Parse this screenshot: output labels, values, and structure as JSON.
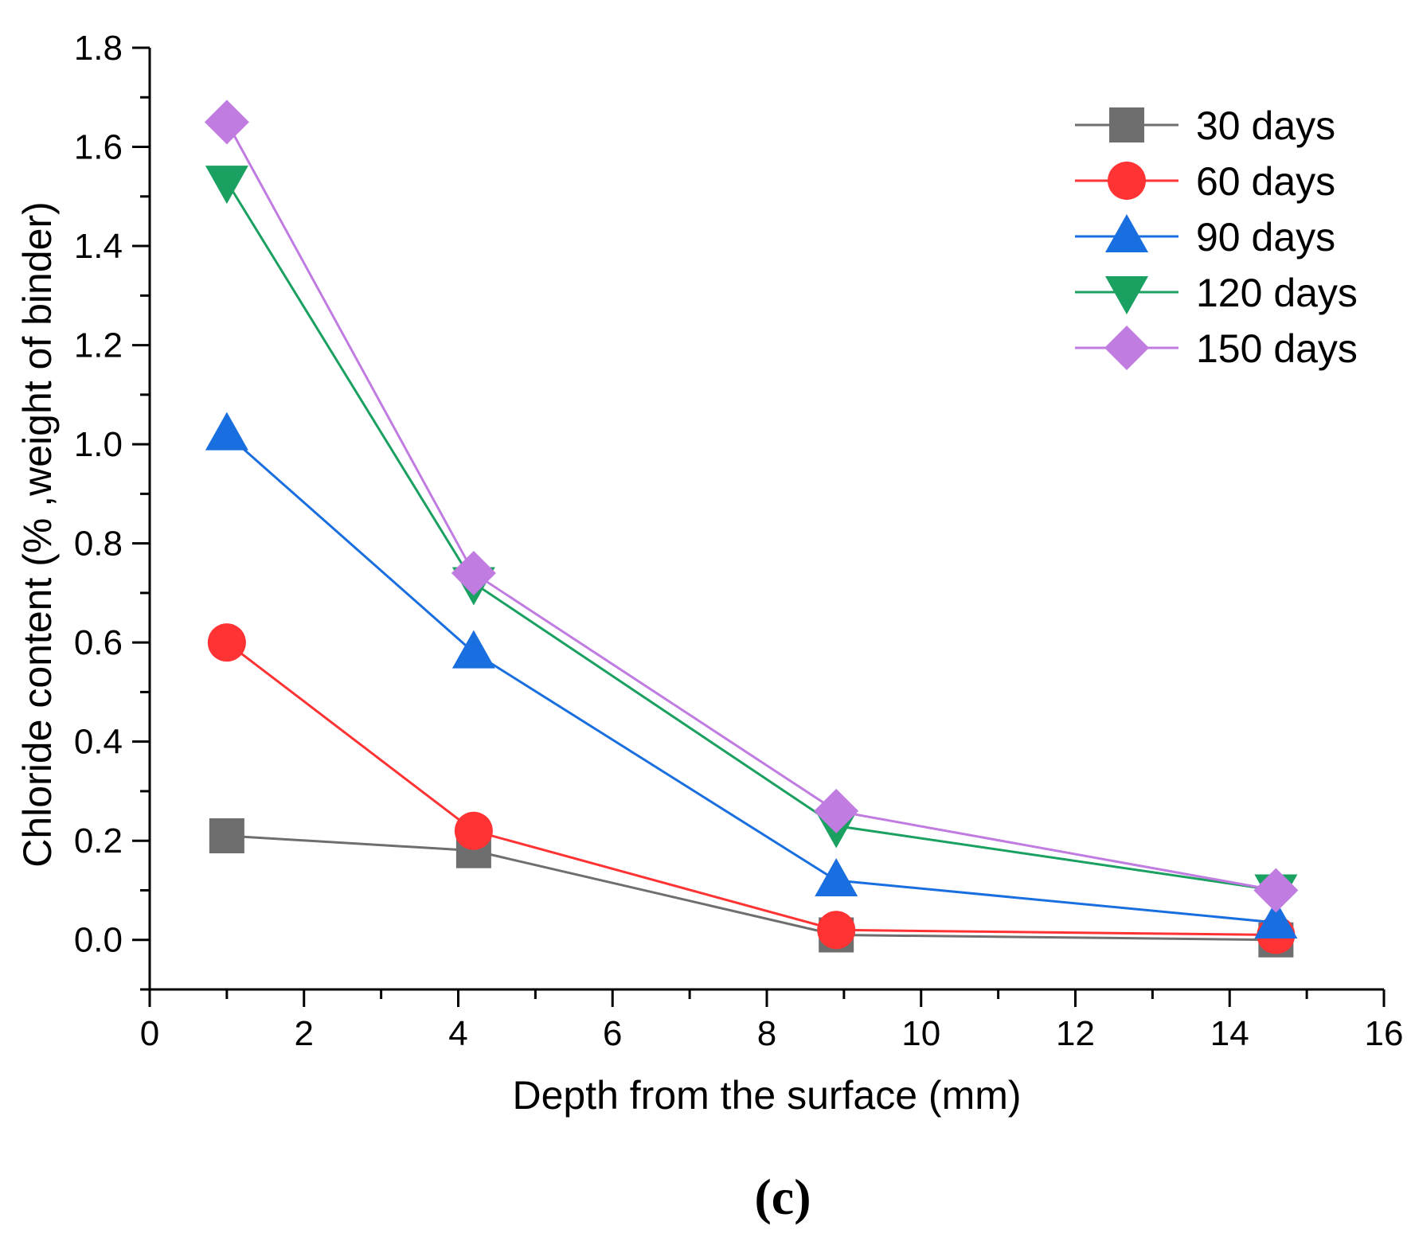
{
  "chart_data": {
    "type": "line",
    "title": "",
    "xlabel": "Depth from the surface (mm)",
    "ylabel": "Chloride content (% ,weight of binder)",
    "xlim": [
      0,
      16
    ],
    "ylim": [
      -0.1,
      1.8
    ],
    "xticks": [
      "0",
      "2",
      "4",
      "6",
      "8",
      "10",
      "12",
      "14",
      "16"
    ],
    "yticks": [
      "0.0",
      "0.2",
      "0.4",
      "0.6",
      "0.8",
      "1.0",
      "1.2",
      "1.4",
      "1.6",
      "1.8"
    ],
    "grid": false,
    "legend_position": "top-right",
    "panel_label": "(c)",
    "x": [
      1.0,
      4.2,
      8.9,
      14.6
    ],
    "series": [
      {
        "name": "30 days",
        "color": "#6e6e6e",
        "marker": "square",
        "values": [
          0.21,
          0.18,
          0.01,
          0.0
        ]
      },
      {
        "name": "60 days",
        "color": "#ff3333",
        "marker": "circle",
        "values": [
          0.6,
          0.22,
          0.02,
          0.01
        ]
      },
      {
        "name": "90 days",
        "color": "#1a6fe0",
        "marker": "triangle-up",
        "values": [
          1.02,
          0.58,
          0.12,
          0.035
        ]
      },
      {
        "name": "120 days",
        "color": "#1aa060",
        "marker": "triangle-down",
        "values": [
          1.53,
          0.72,
          0.23,
          0.1
        ]
      },
      {
        "name": "150 days",
        "color": "#c07ce0",
        "marker": "diamond",
        "values": [
          1.65,
          0.74,
          0.26,
          0.1
        ]
      }
    ]
  }
}
